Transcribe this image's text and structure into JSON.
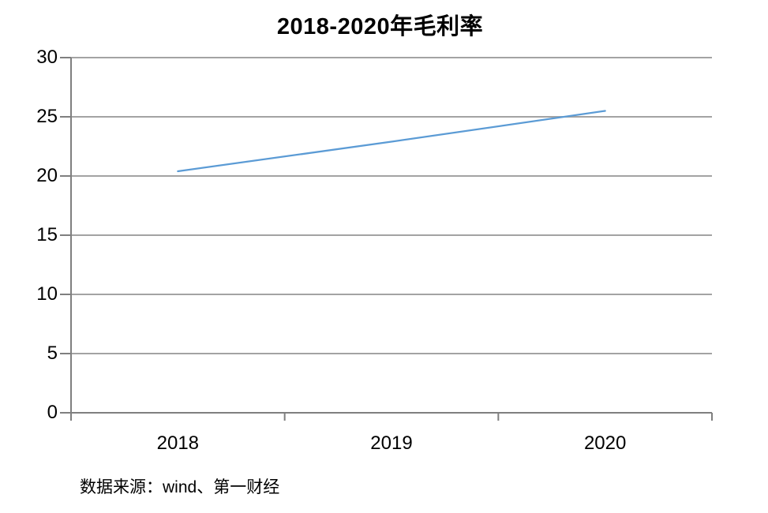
{
  "chart_data": {
    "type": "line",
    "title": "2018-2020年毛利率",
    "categories": [
      "2018",
      "2019",
      "2020"
    ],
    "series": [
      {
        "name": "毛利率",
        "values": [
          20.4,
          22.9,
          25.5
        ]
      }
    ],
    "xlabel": "",
    "ylabel": "",
    "ylim": [
      0,
      30
    ],
    "yticks": [
      0,
      5,
      10,
      15,
      20,
      25,
      30
    ],
    "grid": "horizontal",
    "legend_position": "none",
    "colors": {
      "series_line": "#5B9BD5",
      "gridline": "#A3A3A3",
      "axis": "#7F7F7F",
      "text": "#000000",
      "background": "#FFFFFF"
    },
    "source_note": "数据来源：wind、第一财经"
  }
}
